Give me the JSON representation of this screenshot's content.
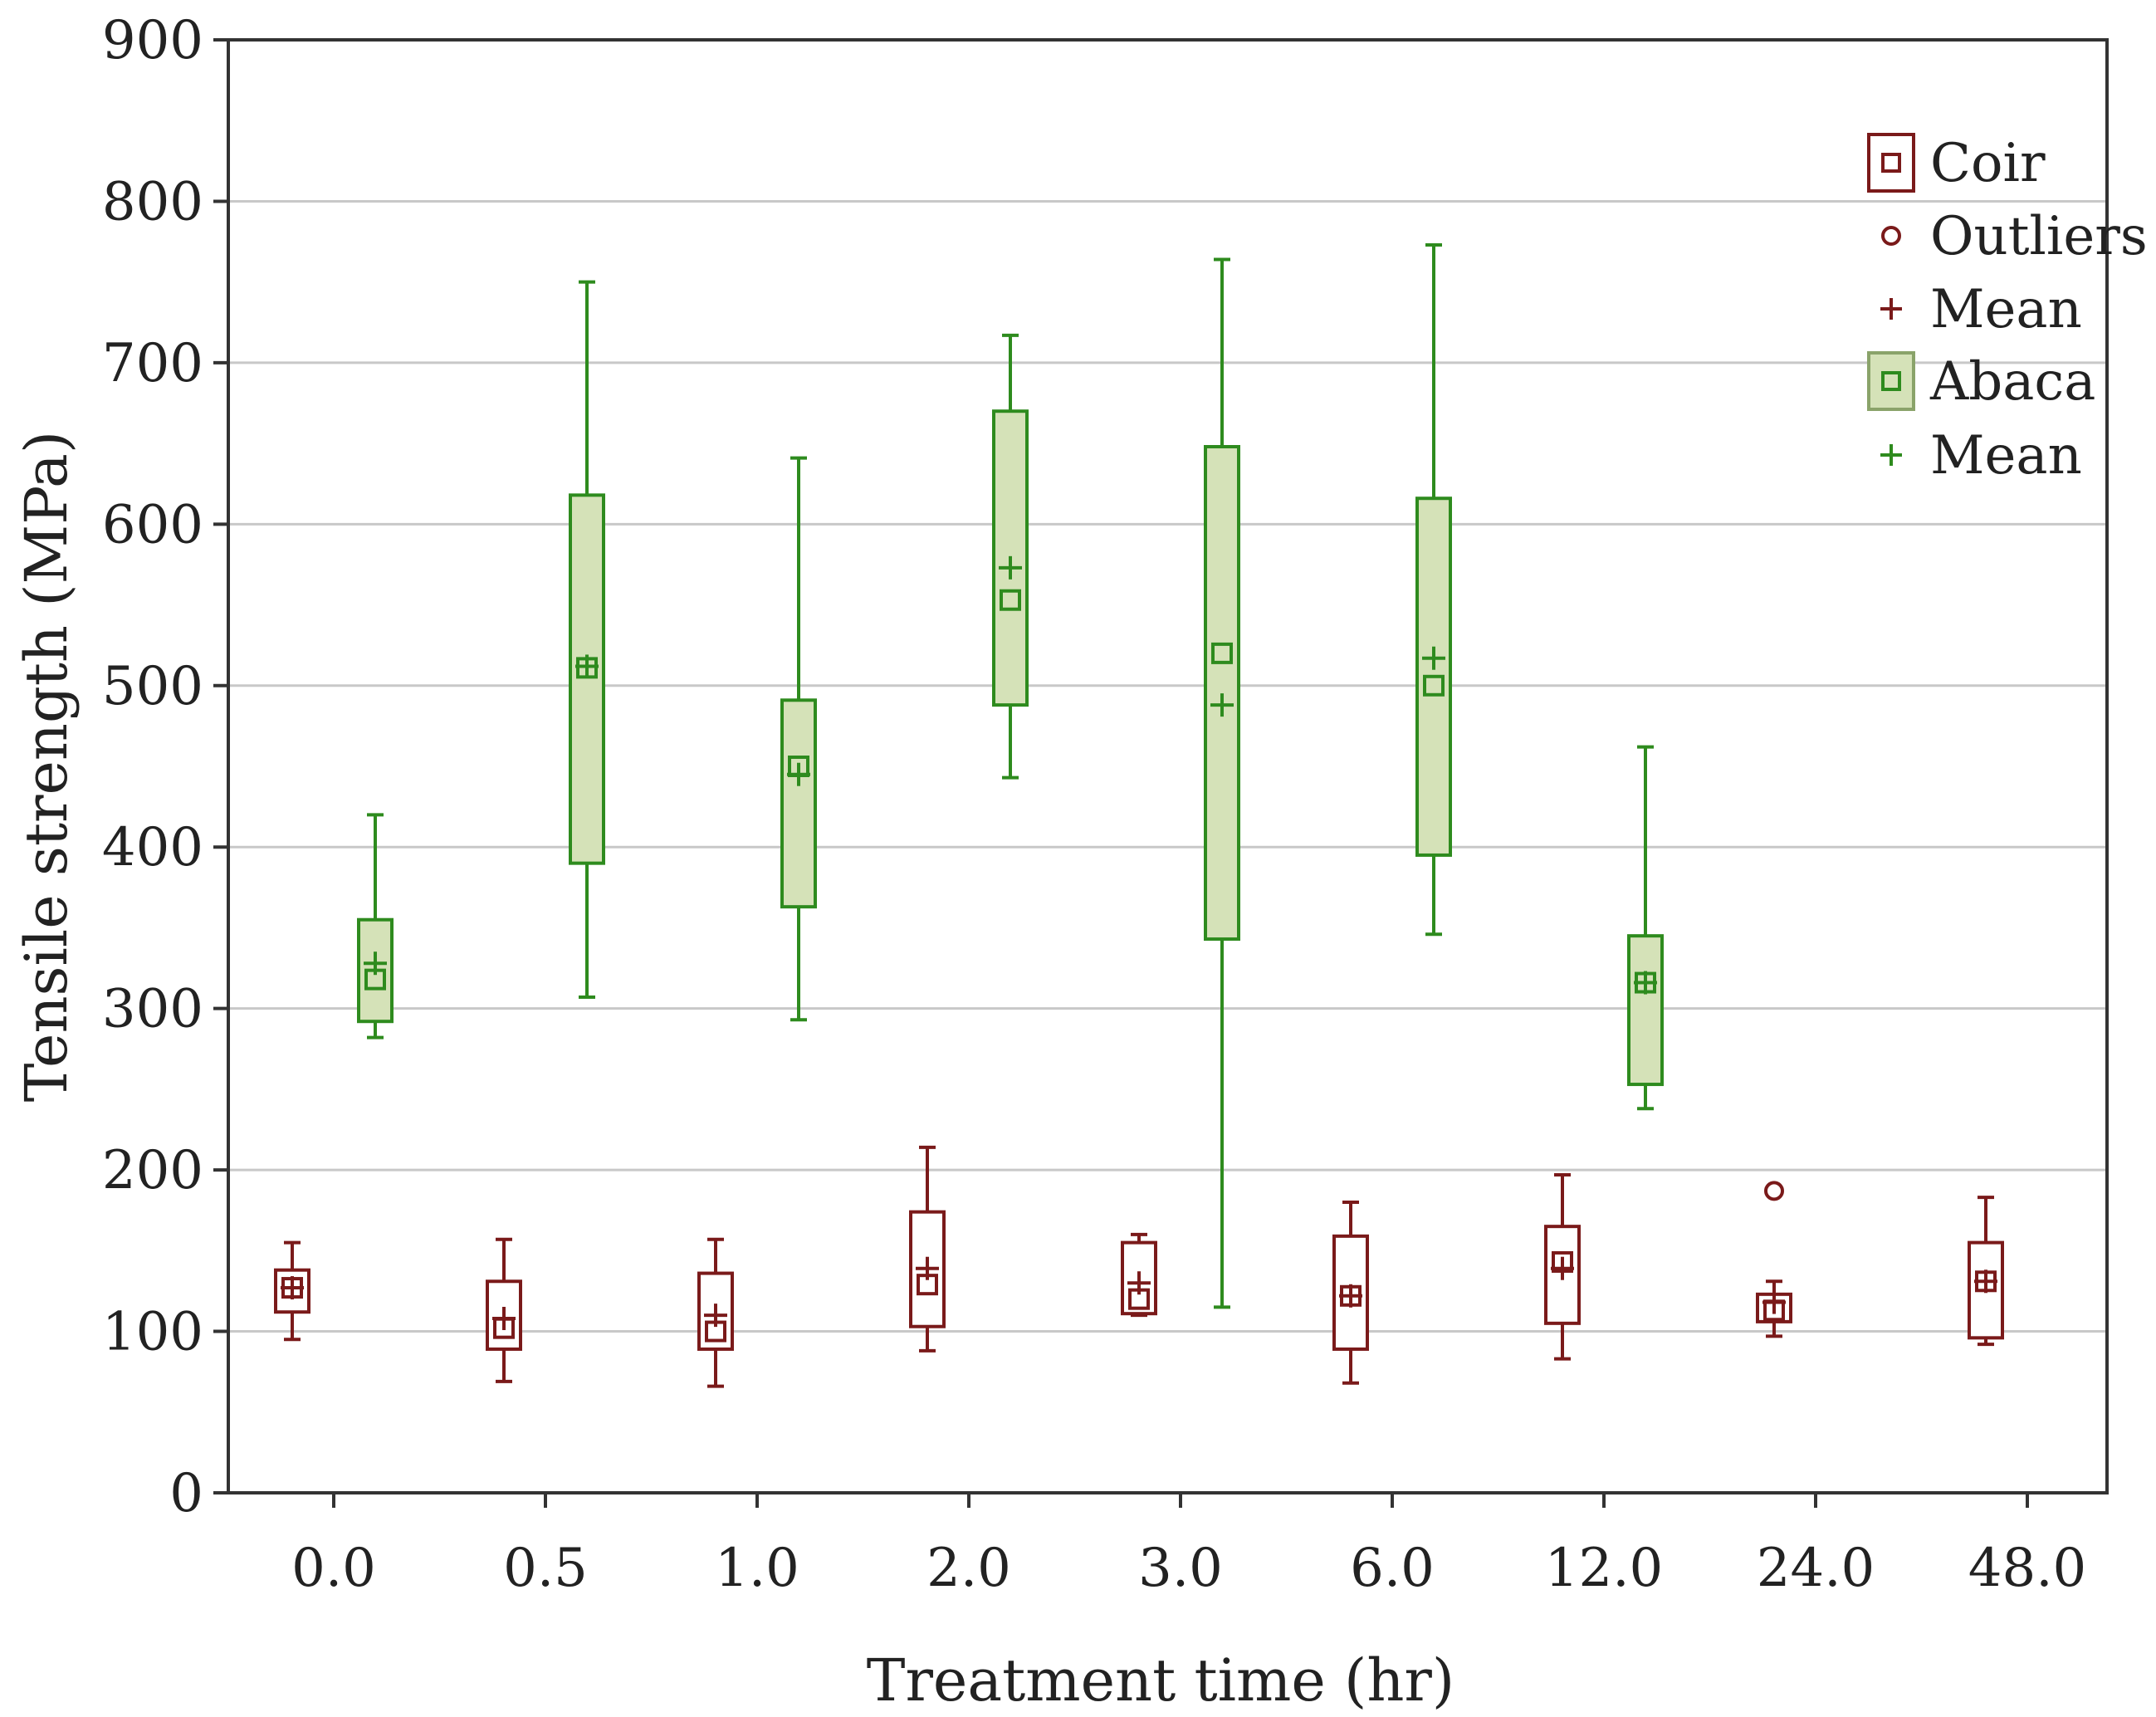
{
  "chart_data": {
    "type": "box",
    "xlabel": "Treatment time (hr)",
    "ylabel": "Tensile strength (MPa)",
    "categories": [
      "0.0",
      "0.5",
      "1.0",
      "2.0",
      "3.0",
      "6.0",
      "12.0",
      "24.0",
      "48.0"
    ],
    "ylim": [
      0,
      900
    ],
    "yticks": [
      0,
      100,
      200,
      300,
      400,
      500,
      600,
      700,
      800,
      900
    ],
    "grid": "horizontal",
    "legend_position": "top-right",
    "colors": {
      "coir": "#7a1a1a",
      "abaca": "#2e8b1e",
      "abaca_fill": "#d5e2b8",
      "grid": "#c8c8c8"
    },
    "legend": [
      {
        "label": "Coir",
        "symbol": "box-coir"
      },
      {
        "label": "Outliers",
        "symbol": "circle-coir"
      },
      {
        "label": "Mean",
        "symbol": "plus-coir"
      },
      {
        "label": "Abaca",
        "symbol": "box-abaca"
      },
      {
        "label": "Mean",
        "symbol": "plus-abaca"
      }
    ],
    "series": [
      {
        "name": "Coir",
        "boxes": [
          {
            "category": "0.0",
            "min": 95,
            "q1": 112,
            "median": 127,
            "q3": 138,
            "max": 155,
            "mean": 127
          },
          {
            "category": "0.5",
            "min": 69,
            "q1": 89,
            "median": 102,
            "q3": 131,
            "max": 157,
            "mean": 108
          },
          {
            "category": "1.0",
            "min": 66,
            "q1": 89,
            "median": 100,
            "q3": 136,
            "max": 157,
            "mean": 110
          },
          {
            "category": "2.0",
            "min": 88,
            "q1": 103,
            "median": 129,
            "q3": 174,
            "max": 214,
            "mean": 139
          },
          {
            "category": "3.0",
            "min": 110,
            "q1": 111,
            "median": 120,
            "q3": 155,
            "max": 160,
            "mean": 130
          },
          {
            "category": "6.0",
            "min": 68,
            "q1": 89,
            "median": 122,
            "q3": 159,
            "max": 180,
            "mean": 122
          },
          {
            "category": "12.0",
            "min": 83,
            "q1": 105,
            "median": 143,
            "q3": 165,
            "max": 197,
            "mean": 139
          },
          {
            "category": "24.0",
            "min": 97,
            "q1": 106,
            "median": 113,
            "q3": 123,
            "max": 131,
            "mean": 118,
            "outliers": [
              187
            ]
          },
          {
            "category": "48.0",
            "min": 92,
            "q1": 96,
            "median": 131,
            "q3": 155,
            "max": 183,
            "mean": 131
          }
        ]
      },
      {
        "name": "Abaca",
        "boxes": [
          {
            "category": "0.0",
            "min": 282,
            "q1": 292,
            "median": 318,
            "q3": 355,
            "max": 420,
            "mean": 328
          },
          {
            "category": "0.5",
            "min": 307,
            "q1": 390,
            "median": 511,
            "q3": 618,
            "max": 750,
            "mean": 512
          },
          {
            "category": "1.0",
            "min": 293,
            "q1": 363,
            "median": 450,
            "q3": 491,
            "max": 641,
            "mean": 445
          },
          {
            "category": "2.0",
            "min": 443,
            "q1": 488,
            "median": 553,
            "q3": 670,
            "max": 717,
            "mean": 573
          },
          {
            "category": "3.0",
            "min": 115,
            "q1": 343,
            "median": 520,
            "q3": 648,
            "max": 764,
            "mean": 488
          },
          {
            "category": "6.0",
            "min": 346,
            "q1": 395,
            "median": 500,
            "q3": 616,
            "max": 773,
            "mean": 517
          },
          {
            "category": "12.0",
            "min": 238,
            "q1": 253,
            "median": 316,
            "q3": 345,
            "max": 462,
            "mean": 316
          }
        ]
      }
    ]
  }
}
